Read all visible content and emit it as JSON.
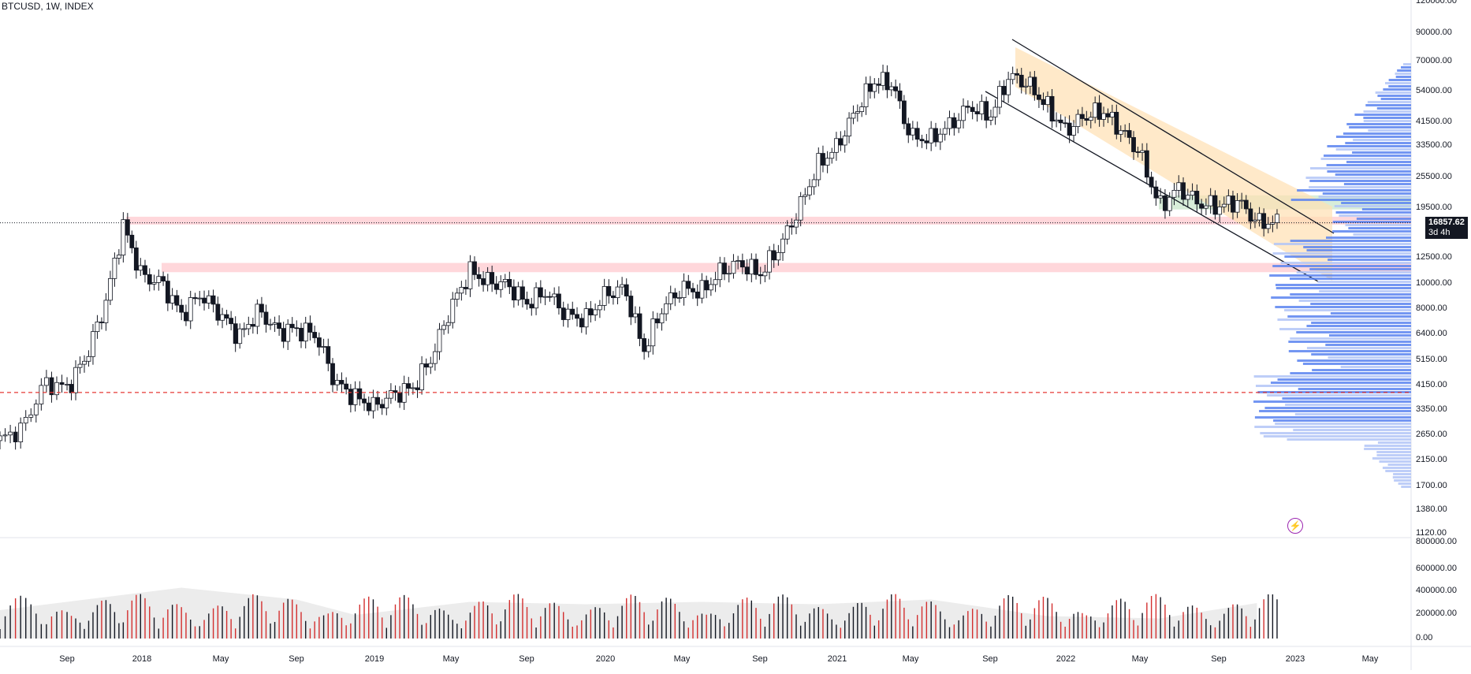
{
  "header": {
    "symbol": "BTCUSD, 1W, INDEX"
  },
  "colors": {
    "up": "#ffffff",
    "down": "#131722",
    "wick": "#131722",
    "volume_up": "#131722",
    "volume_down": "#d32f2f",
    "volume_ma_fill": "#e0e0e0",
    "resistance_zone": "#ffcdd2",
    "channel_fill": "#ffe0b2",
    "green_zone": "#c8e6c9",
    "vp_dark": "#5b84f0",
    "vp_light": "#b3c6f7",
    "current_price": "#131722",
    "support_line": "#e53935"
  },
  "price_tag": {
    "price": "16857.62",
    "countdown": "3d 4h"
  },
  "icons": [
    "lightning-bolt-icon"
  ],
  "chart_data": {
    "type": "candlestick",
    "symbol": "BTCUSD",
    "interval": "1W",
    "y_axis_scale": "log",
    "y_axis_ticks": [
      "120000.00",
      "90000.00",
      "70000.00",
      "54000.00",
      "41500.00",
      "33500.00",
      "25500.00",
      "19500.00",
      "12500.00",
      "10000.00",
      "8000.00",
      "6400.00",
      "5150.00",
      "4150.00",
      "3350.00",
      "2650.00",
      "2150.00",
      "1700.00",
      "1380.00",
      "1120.00"
    ],
    "volume_axis_ticks": [
      "800000.00",
      "600000.00",
      "400000.00",
      "200000.00",
      "0.00"
    ],
    "x_axis_ticks": [
      "Sep",
      "2018",
      "May",
      "Sep",
      "2019",
      "May",
      "Sep",
      "2020",
      "May",
      "Sep",
      "2021",
      "May",
      "Sep",
      "2022",
      "May",
      "Sep",
      "2023",
      "May"
    ],
    "price_path": [
      [
        "2017-06",
        2500
      ],
      [
        "2017-07",
        2800
      ],
      [
        "2017-08",
        4200
      ],
      [
        "2017-09",
        4000
      ],
      [
        "2017-10",
        5200
      ],
      [
        "2017-11",
        8000
      ],
      [
        "2017-12",
        16500
      ],
      [
        "2018-01",
        10500
      ],
      [
        "2018-02",
        10000
      ],
      [
        "2018-03",
        7500
      ],
      [
        "2018-04",
        9000
      ],
      [
        "2018-05",
        7500
      ],
      [
        "2018-06",
        6200
      ],
      [
        "2018-07",
        7800
      ],
      [
        "2018-08",
        6500
      ],
      [
        "2018-09",
        6600
      ],
      [
        "2018-10",
        6300
      ],
      [
        "2018-11",
        4200
      ],
      [
        "2018-12",
        3700
      ],
      [
        "2019-01",
        3400
      ],
      [
        "2019-02",
        3800
      ],
      [
        "2019-03",
        4000
      ],
      [
        "2019-04",
        5200
      ],
      [
        "2019-05",
        8000
      ],
      [
        "2019-06",
        11000
      ],
      [
        "2019-07",
        10000
      ],
      [
        "2019-08",
        9800
      ],
      [
        "2019-09",
        8300
      ],
      [
        "2019-10",
        9200
      ],
      [
        "2019-11",
        7500
      ],
      [
        "2019-12",
        7200
      ],
      [
        "2020-01",
        9000
      ],
      [
        "2020-02",
        9500
      ],
      [
        "2020-03",
        5500
      ],
      [
        "2020-04",
        8000
      ],
      [
        "2020-05",
        9500
      ],
      [
        "2020-06",
        9200
      ],
      [
        "2020-07",
        11000
      ],
      [
        "2020-08",
        11800
      ],
      [
        "2020-09",
        10700
      ],
      [
        "2020-10",
        13500
      ],
      [
        "2020-11",
        19000
      ],
      [
        "2020-12",
        28000
      ],
      [
        "2021-01",
        33000
      ],
      [
        "2021-02",
        45000
      ],
      [
        "2021-03",
        58000
      ],
      [
        "2021-04",
        57000
      ],
      [
        "2021-05",
        36000
      ],
      [
        "2021-06",
        35000
      ],
      [
        "2021-07",
        40000
      ],
      [
        "2021-08",
        47000
      ],
      [
        "2021-09",
        43000
      ],
      [
        "2021-10",
        61000
      ],
      [
        "2021-11",
        57000
      ],
      [
        "2021-12",
        47000
      ],
      [
        "2022-01",
        38000
      ],
      [
        "2022-02",
        43000
      ],
      [
        "2022-03",
        45000
      ],
      [
        "2022-04",
        38000
      ],
      [
        "2022-05",
        31000
      ],
      [
        "2022-06",
        19500
      ],
      [
        "2022-07",
        23000
      ],
      [
        "2022-08",
        20000
      ],
      [
        "2022-09",
        19500
      ],
      [
        "2022-10",
        20500
      ],
      [
        "2022-11",
        17000
      ],
      [
        "2022-12",
        16850
      ]
    ],
    "volume_ma_path": [
      [
        "2017-06",
        240000
      ],
      [
        "2018-03",
        430000
      ],
      [
        "2018-09",
        330000
      ],
      [
        "2018-12",
        200000
      ],
      [
        "2019-06",
        310000
      ],
      [
        "2019-12",
        290000
      ],
      [
        "2020-06",
        310000
      ],
      [
        "2020-12",
        290000
      ],
      [
        "2021-06",
        330000
      ],
      [
        "2021-12",
        190000
      ],
      [
        "2022-06",
        170000
      ],
      [
        "2022-11",
        300000
      ]
    ],
    "levels": {
      "current_price": 16857.62,
      "support": 3850
    }
  }
}
